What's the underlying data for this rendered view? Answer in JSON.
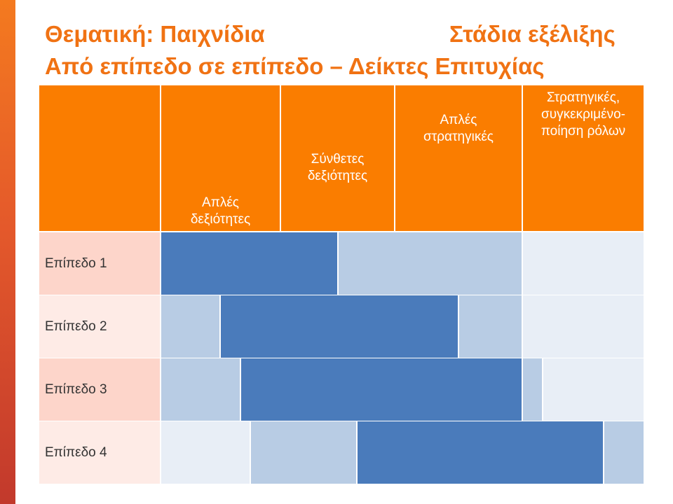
{
  "title": {
    "line1_left": "Θεματική: Παιχνίδια",
    "line1_right": "Στάδια εξέλιξης",
    "line2": "Από επίπεδο σε επίπεδο – Δείκτες Επιτυχίας"
  },
  "columns": [
    {
      "label": "Απλές δεξιότητες"
    },
    {
      "label": "Σύνθετες δεξιότητες"
    },
    {
      "label": "Απλές στρατηγικές"
    },
    {
      "label": "Στρατηγικές, συγκεκριμένο-ποίηση ρόλων"
    }
  ],
  "levels": [
    {
      "label": "Επίπεδο 1"
    },
    {
      "label": "Επίπεδο 2"
    },
    {
      "label": "Επίπεδο 3"
    },
    {
      "label": "Επίπεδο 4"
    }
  ],
  "colors": {
    "accent": "#f07213",
    "header": "#fa7d00",
    "level_odd": "#fdd5ca",
    "level_even": "#feebe6",
    "intensity_strong": "#4a7bbb",
    "intensity_medium": "#b8cce4",
    "intensity_light": "#e8eef6"
  }
}
